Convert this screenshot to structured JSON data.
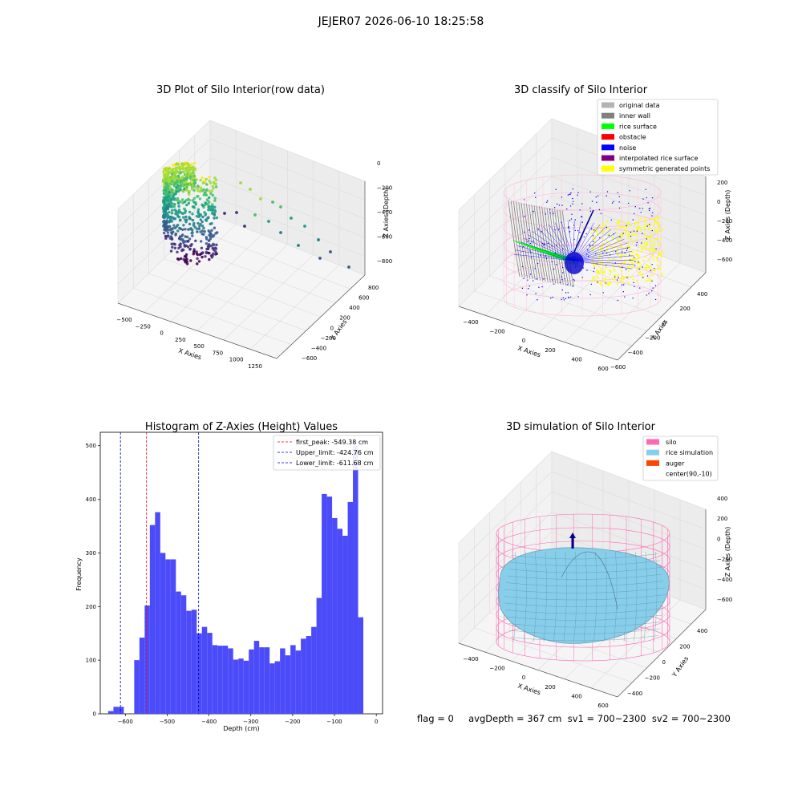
{
  "suptitle": "JEJER07 2026-06-10 18:25:58",
  "footer": "flag = 0     avgDepth = 367 cm  sv1 = 700~2300  sv2 = 700~2300",
  "colors": {
    "hist": "#4b4bfa",
    "peak": "#ff0000",
    "limit": "#0000cc",
    "silo": "#ff69b4",
    "rice": "#87ceeb",
    "auger": "#ff4500",
    "original": "#b3b3b3",
    "inner_wall": "#808080",
    "rice_surface": "#00ff00",
    "obstacle": "#ff0000",
    "noise": "#0000ff",
    "interp": "#800080",
    "symmetric": "#ffff00"
  },
  "chart_data": [
    {
      "type": "scatter",
      "title": "3D Plot of Silo Interior(row data)",
      "xlabel": "X Axies",
      "ylabel": "Y Axies",
      "zlabel": "Z Axies (Depth)",
      "x_ticks": [
        "−500",
        "−250",
        "0",
        "250",
        "500",
        "750",
        "1000",
        "1250"
      ],
      "y_ticks": [
        "−600",
        "−400",
        "−200",
        "0",
        "200",
        "400",
        "600",
        "800"
      ],
      "z_ticks": [
        "0",
        "−200",
        "−400",
        "−600",
        "−800"
      ],
      "xlim": [
        -500,
        1300
      ],
      "ylim": [
        -600,
        800
      ],
      "zlim": [
        -900,
        0
      ],
      "colormap": "viridis"
    },
    {
      "type": "scatter",
      "title": "3D classify of Silo Interior",
      "xlabel": "X Axies",
      "ylabel": "Y Axies",
      "zlabel": "Z Axies (Depth)",
      "x_ticks": [
        "−400",
        "−200",
        "0",
        "200",
        "400",
        "600"
      ],
      "y_ticks": [
        "−600",
        "−400",
        "−200",
        "0",
        "200",
        "400"
      ],
      "z_ticks": [
        "200",
        "0",
        "−200",
        "−400",
        "−600"
      ],
      "legend_position": "upper right",
      "legend": [
        {
          "label": "original data",
          "color": "#b3b3b3"
        },
        {
          "label": "inner wall",
          "color": "#808080"
        },
        {
          "label": "rice surface",
          "color": "#00ff00"
        },
        {
          "label": "obstacle",
          "color": "#ff0000"
        },
        {
          "label": "noise",
          "color": "#0000ff"
        },
        {
          "label": "interpolated rice surface",
          "color": "#800080"
        },
        {
          "label": "symmetric generated points",
          "color": "#ffff00"
        }
      ]
    },
    {
      "type": "bar",
      "title": "Histogram of Z-Axies (Height) Values",
      "xlabel": "Depth (cm)",
      "ylabel": "Frequency",
      "xlim": [
        -660,
        15
      ],
      "ylim": [
        0,
        525
      ],
      "x_ticks": [
        -600,
        -500,
        -400,
        -300,
        -200,
        -100,
        0
      ],
      "x_tick_labels": [
        "−600",
        "−500",
        "−400",
        "−300",
        "−200",
        "℀",
        "0"
      ],
      "y_ticks": [
        0,
        100,
        200,
        300,
        400,
        500
      ],
      "bin_start": -641.0,
      "bin_width": 12.45,
      "values": [
        5,
        13,
        13,
        0,
        0,
        100,
        142,
        202,
        352,
        376,
        300,
        288,
        288,
        228,
        221,
        192,
        194,
        150,
        162,
        151,
        128,
        127,
        127,
        122,
        101,
        103,
        99,
        120,
        136,
        124,
        124,
        94,
        98,
        122,
        109,
        128,
        118,
        140,
        145,
        162,
        216,
        410,
        405,
        365,
        345,
        332,
        395,
        500,
        180
      ],
      "lines": [
        {
          "label": "first_peak: -549.38 cm",
          "x": -549.38,
          "color": "#ff0000"
        },
        {
          "label": "Upper_limit: -424.76 cm",
          "x": -424.76,
          "color": "#0000cc"
        },
        {
          "label": "Lower_limit: -611.68 cm",
          "x": -611.68,
          "color": "#0000cc"
        }
      ],
      "legend_position": "upper right"
    },
    {
      "type": "surface",
      "title": "3D simulation of Silo Interior",
      "xlabel": "X Axies",
      "ylabel": "Y Axies",
      "zlabel": "Z Axies (Depth)",
      "x_ticks": [
        "−400",
        "−200",
        "0",
        "200",
        "400",
        "600"
      ],
      "y_ticks": [
        "−400",
        "−200",
        "0",
        "200",
        "400"
      ],
      "z_ticks": [
        "400",
        "200",
        "0",
        "−200",
        "−400",
        "−600"
      ],
      "legend_position": "upper right",
      "legend": [
        {
          "label": "silo",
          "color": "#ff69b4"
        },
        {
          "label": "rice simulation",
          "color": "#87ceeb"
        },
        {
          "label": "auger",
          "color": "#ff4500"
        },
        {
          "label": "center(90,-10)",
          "color": "none"
        }
      ]
    }
  ]
}
